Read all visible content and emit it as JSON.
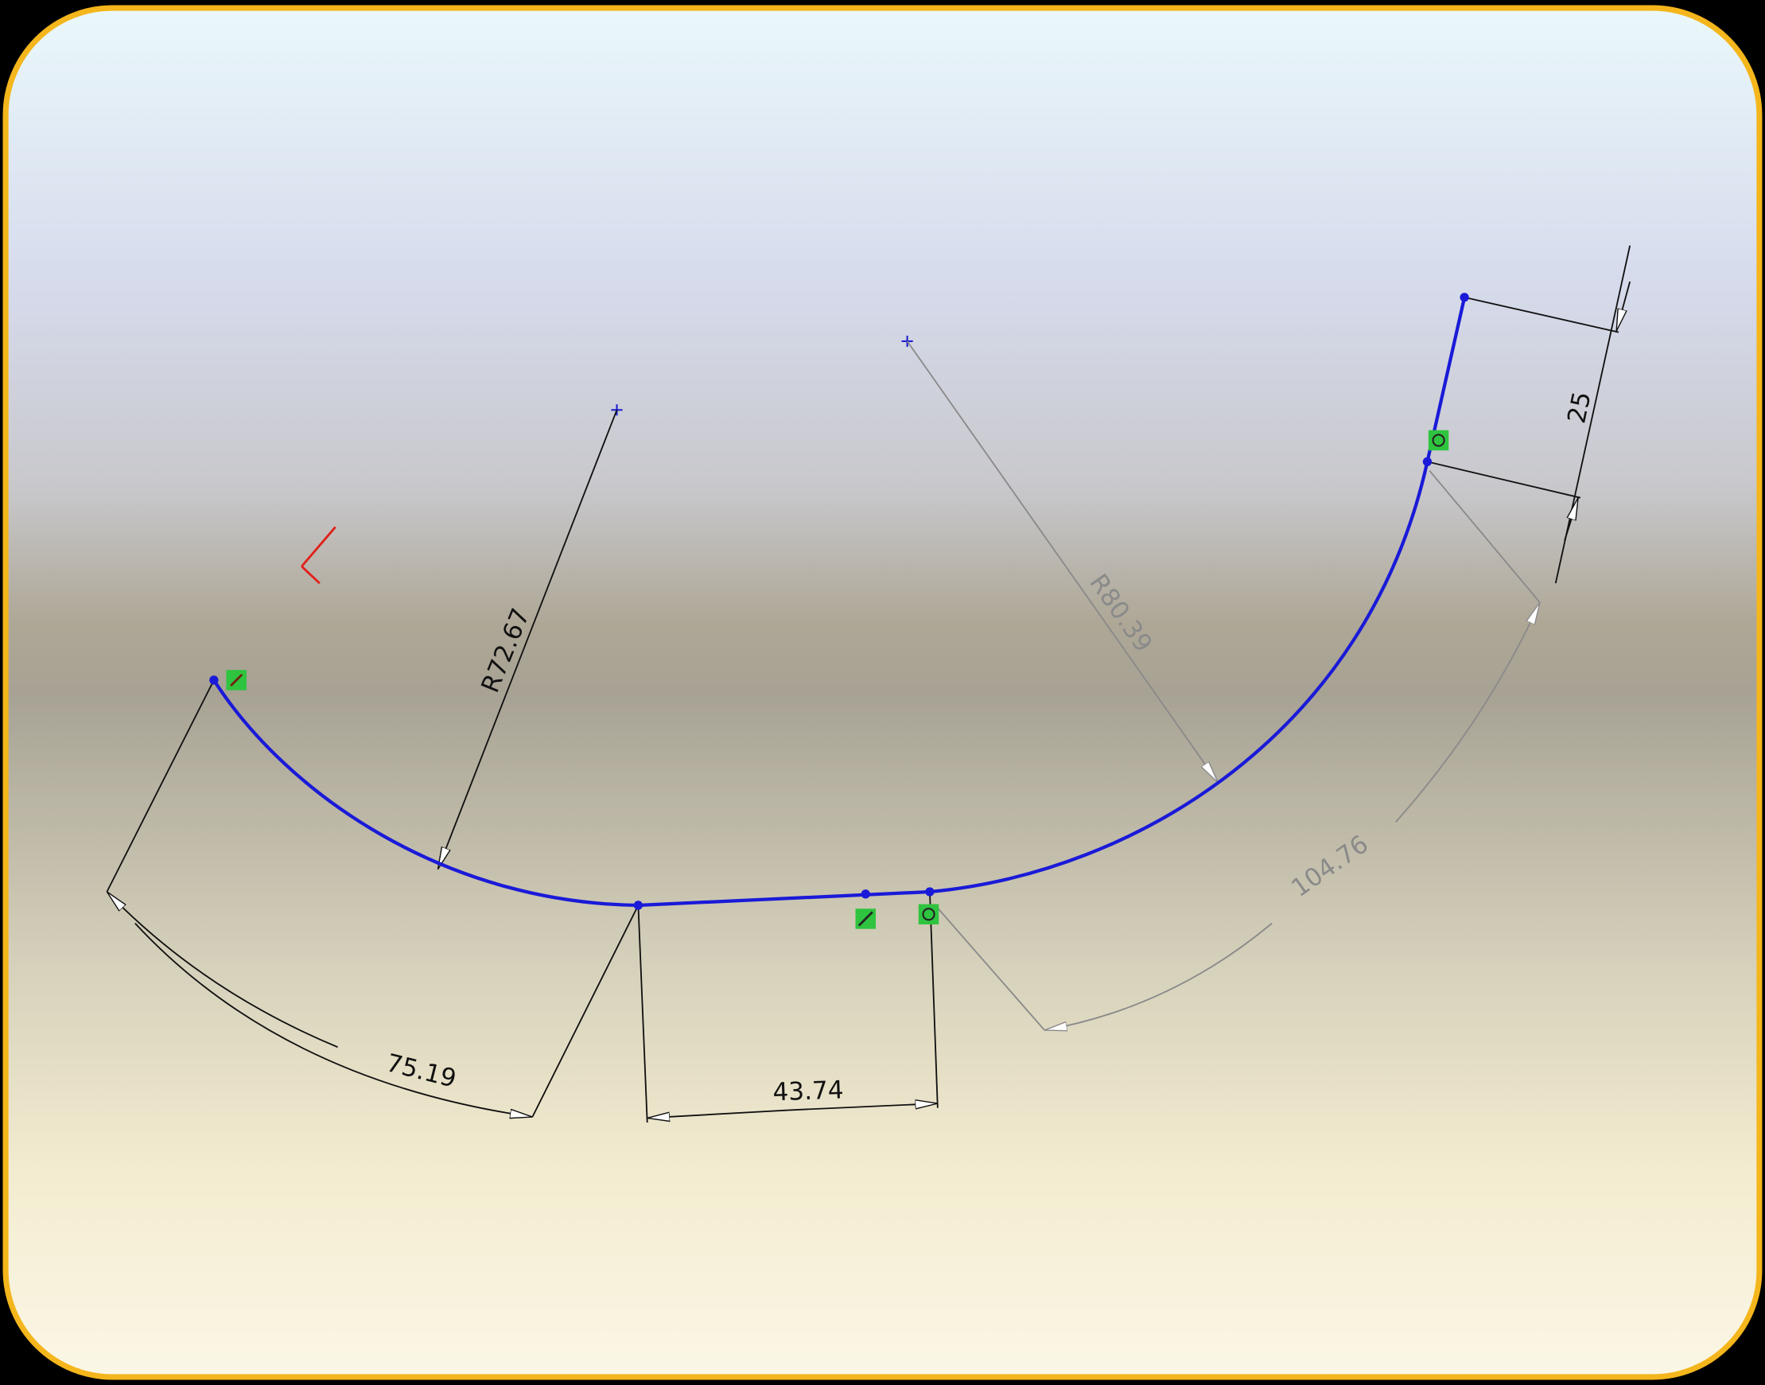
{
  "sketch": {
    "dimensions": {
      "left_arc_radius": "R72.67",
      "right_arc_radius": "R80.39",
      "left_arc_length": "75.19",
      "line_length": "43.74",
      "right_arc_length": "104.76",
      "end_line_length": "25"
    }
  }
}
